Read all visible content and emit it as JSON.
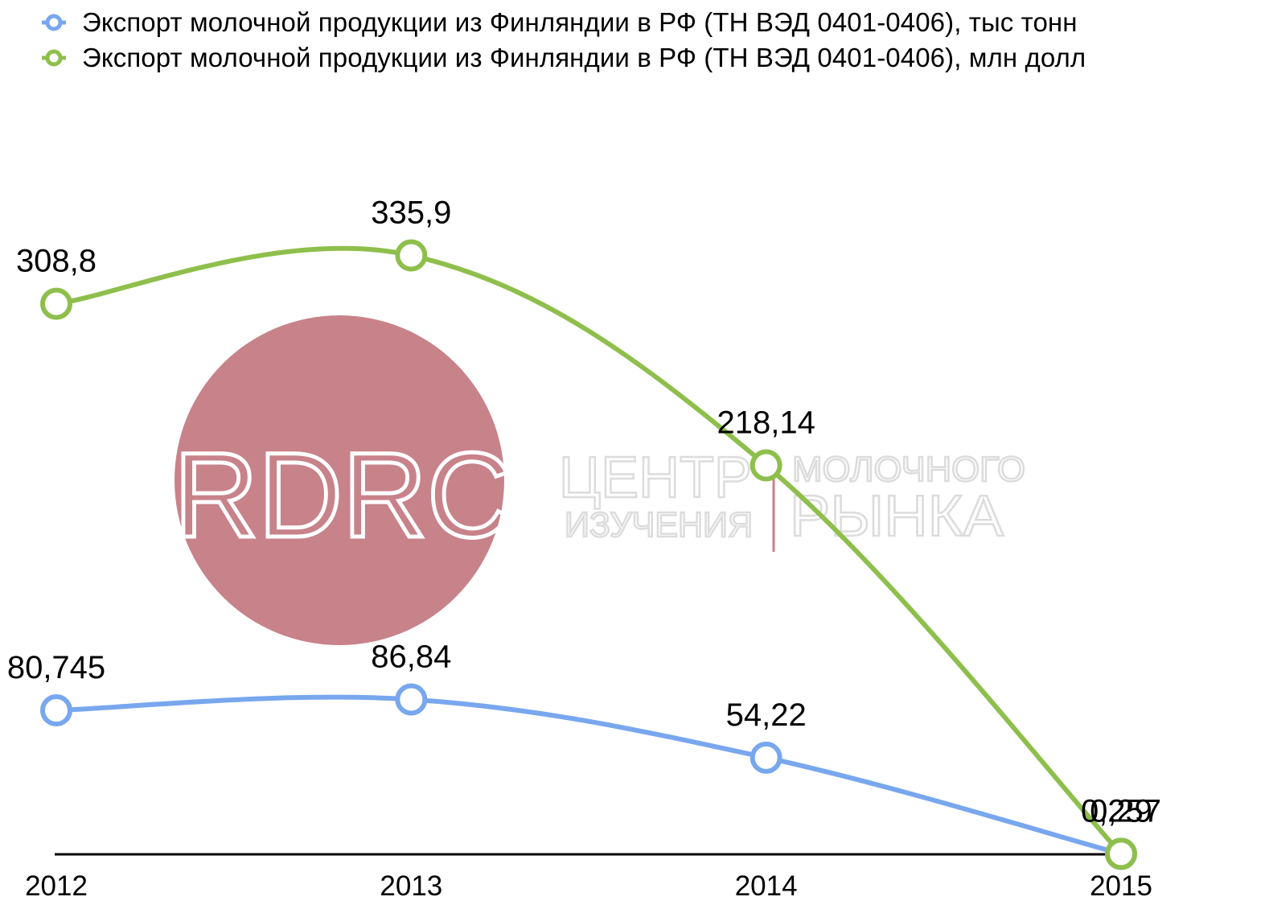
{
  "legend": {
    "items": [
      {
        "label": "Экспорт молочной продукции из Финляндии в РФ (ТН ВЭД 0401-0406), тыс тонн",
        "color": "#78a7ee"
      },
      {
        "label": "Экспорт молочной продукции из Финляндии в РФ (ТН ВЭД 0401-0406), млн долл",
        "color": "#8ebf4c"
      }
    ]
  },
  "watermark": {
    "logo_text": "RDRC",
    "text_lines": [
      "ЦЕНТР",
      "ИЗУЧЕНИЯ",
      "МОЛОЧНОГО",
      "РЫНКА"
    ],
    "circle_color": "#c8828a",
    "text_color": "#dcdcdc"
  },
  "chart_data": {
    "type": "line",
    "categories": [
      "2012",
      "2013",
      "2014",
      "2015"
    ],
    "series": [
      {
        "name": "Экспорт молочной продукции из Финляндии в РФ (ТН ВЭД 0401-0406), тыс тонн",
        "color": "#78a7ee",
        "values": [
          80.745,
          86.84,
          54.22,
          0.257
        ],
        "labels": [
          "80,745",
          "86,84",
          "54,22",
          "0,257"
        ]
      },
      {
        "name": "Экспорт молочной продукции из Финляндии в РФ (ТН ВЭД 0401-0406), млн долл",
        "color": "#8ebf4c",
        "values": [
          308.8,
          335.9,
          218.14,
          0.29
        ],
        "labels": [
          "308,8",
          "335,9",
          "218,14",
          "0,29"
        ]
      }
    ],
    "ylim": [
      0,
      416
    ],
    "grid": false,
    "legend_position": "top-left",
    "smooth": true
  }
}
